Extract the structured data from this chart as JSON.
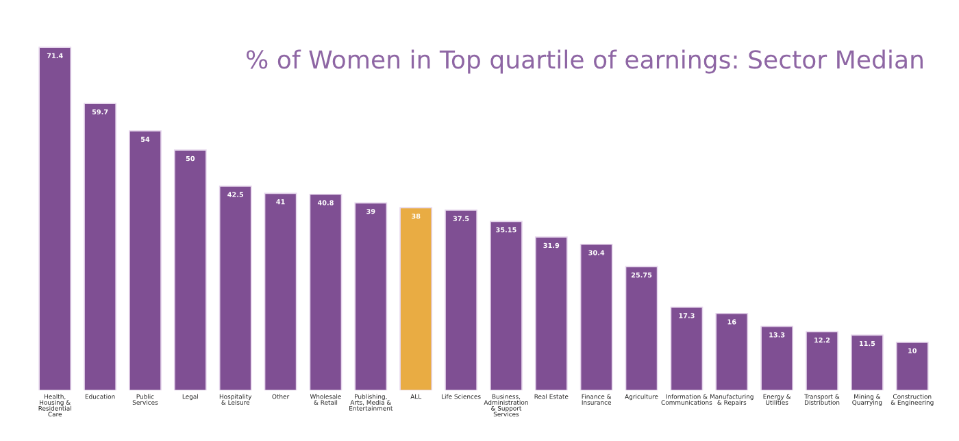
{
  "chart_data": {
    "type": "bar",
    "title": "% of Women in Top quartile of earnings: Sector Median",
    "categories": [
      "Health,\nHousing &\nResidential\nCare",
      "Education",
      "Public\nServices",
      "Legal",
      "Hospitality\n& Leisure",
      "Other",
      "Wholesale\n& Retail",
      "Publishing,\nArts, Media &\nEntertainment",
      "ALL",
      "Life Sciences",
      "Business,\nAdministration\n& Support\nServices",
      "Real Estate",
      "Finance &\nInsurance",
      "Agriculture",
      "Information &\nCommunications",
      "Manufacturing\n& Repairs",
      "Energy &\nUtilities",
      "Transport &\nDistribution",
      "Mining &\nQuarrying",
      "Construction\n& Engineering"
    ],
    "values": [
      71.4,
      59.7,
      54,
      50,
      42.5,
      41,
      40.8,
      39,
      38,
      37.5,
      35.15,
      31.9,
      30.4,
      25.75,
      17.3,
      16,
      13.3,
      12.2,
      11.5,
      10
    ],
    "colors": [
      "#7f4f93",
      "#7f4f93",
      "#7f4f93",
      "#7f4f93",
      "#7f4f93",
      "#7f4f93",
      "#7f4f93",
      "#7f4f93",
      "#e9ac43",
      "#7f4f93",
      "#7f4f93",
      "#7f4f93",
      "#7f4f93",
      "#7f4f93",
      "#7f4f93",
      "#7f4f93",
      "#7f4f93",
      "#7f4f93",
      "#7f4f93",
      "#7f4f93"
    ],
    "data_labels": true
  }
}
